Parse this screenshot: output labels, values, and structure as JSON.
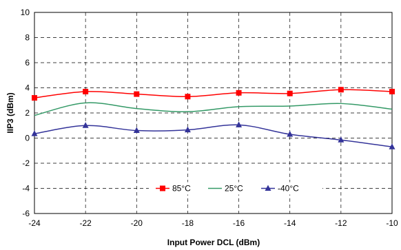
{
  "chart_data": {
    "type": "line",
    "xlabel": "Input Power DCL (dBm)",
    "ylabel": "IIP3  (dBm)",
    "xlim": [
      -24,
      -10
    ],
    "ylim": [
      -6,
      10
    ],
    "x_ticks": [
      -24,
      -22,
      -20,
      -18,
      -16,
      -14,
      -12,
      -10
    ],
    "y_ticks": [
      -6,
      -4,
      -2,
      0,
      2,
      4,
      6,
      8,
      10
    ],
    "grid": true,
    "legend_position": "bottom-center",
    "series": [
      {
        "name": "85°C",
        "color": "#ff0000",
        "marker": "square",
        "x": [
          -24,
          -22,
          -20,
          -18,
          -16,
          -14,
          -12,
          -10
        ],
        "y": [
          3.2,
          3.7,
          3.5,
          3.3,
          3.6,
          3.55,
          3.85,
          3.7
        ]
      },
      {
        "name": "25°C",
        "color": "#339966",
        "marker": "none",
        "x": [
          -24,
          -22,
          -20,
          -18,
          -16,
          -14,
          -12,
          -10
        ],
        "y": [
          1.8,
          2.8,
          2.35,
          2.1,
          2.5,
          2.55,
          2.75,
          2.3
        ]
      },
      {
        "name": "-40°C",
        "color": "#333399",
        "marker": "triangle",
        "x": [
          -24,
          -22,
          -20,
          -18,
          -16,
          -14,
          -12,
          -10
        ],
        "y": [
          0.35,
          1.0,
          0.6,
          0.65,
          1.05,
          0.3,
          -0.15,
          -0.7
        ]
      }
    ]
  }
}
